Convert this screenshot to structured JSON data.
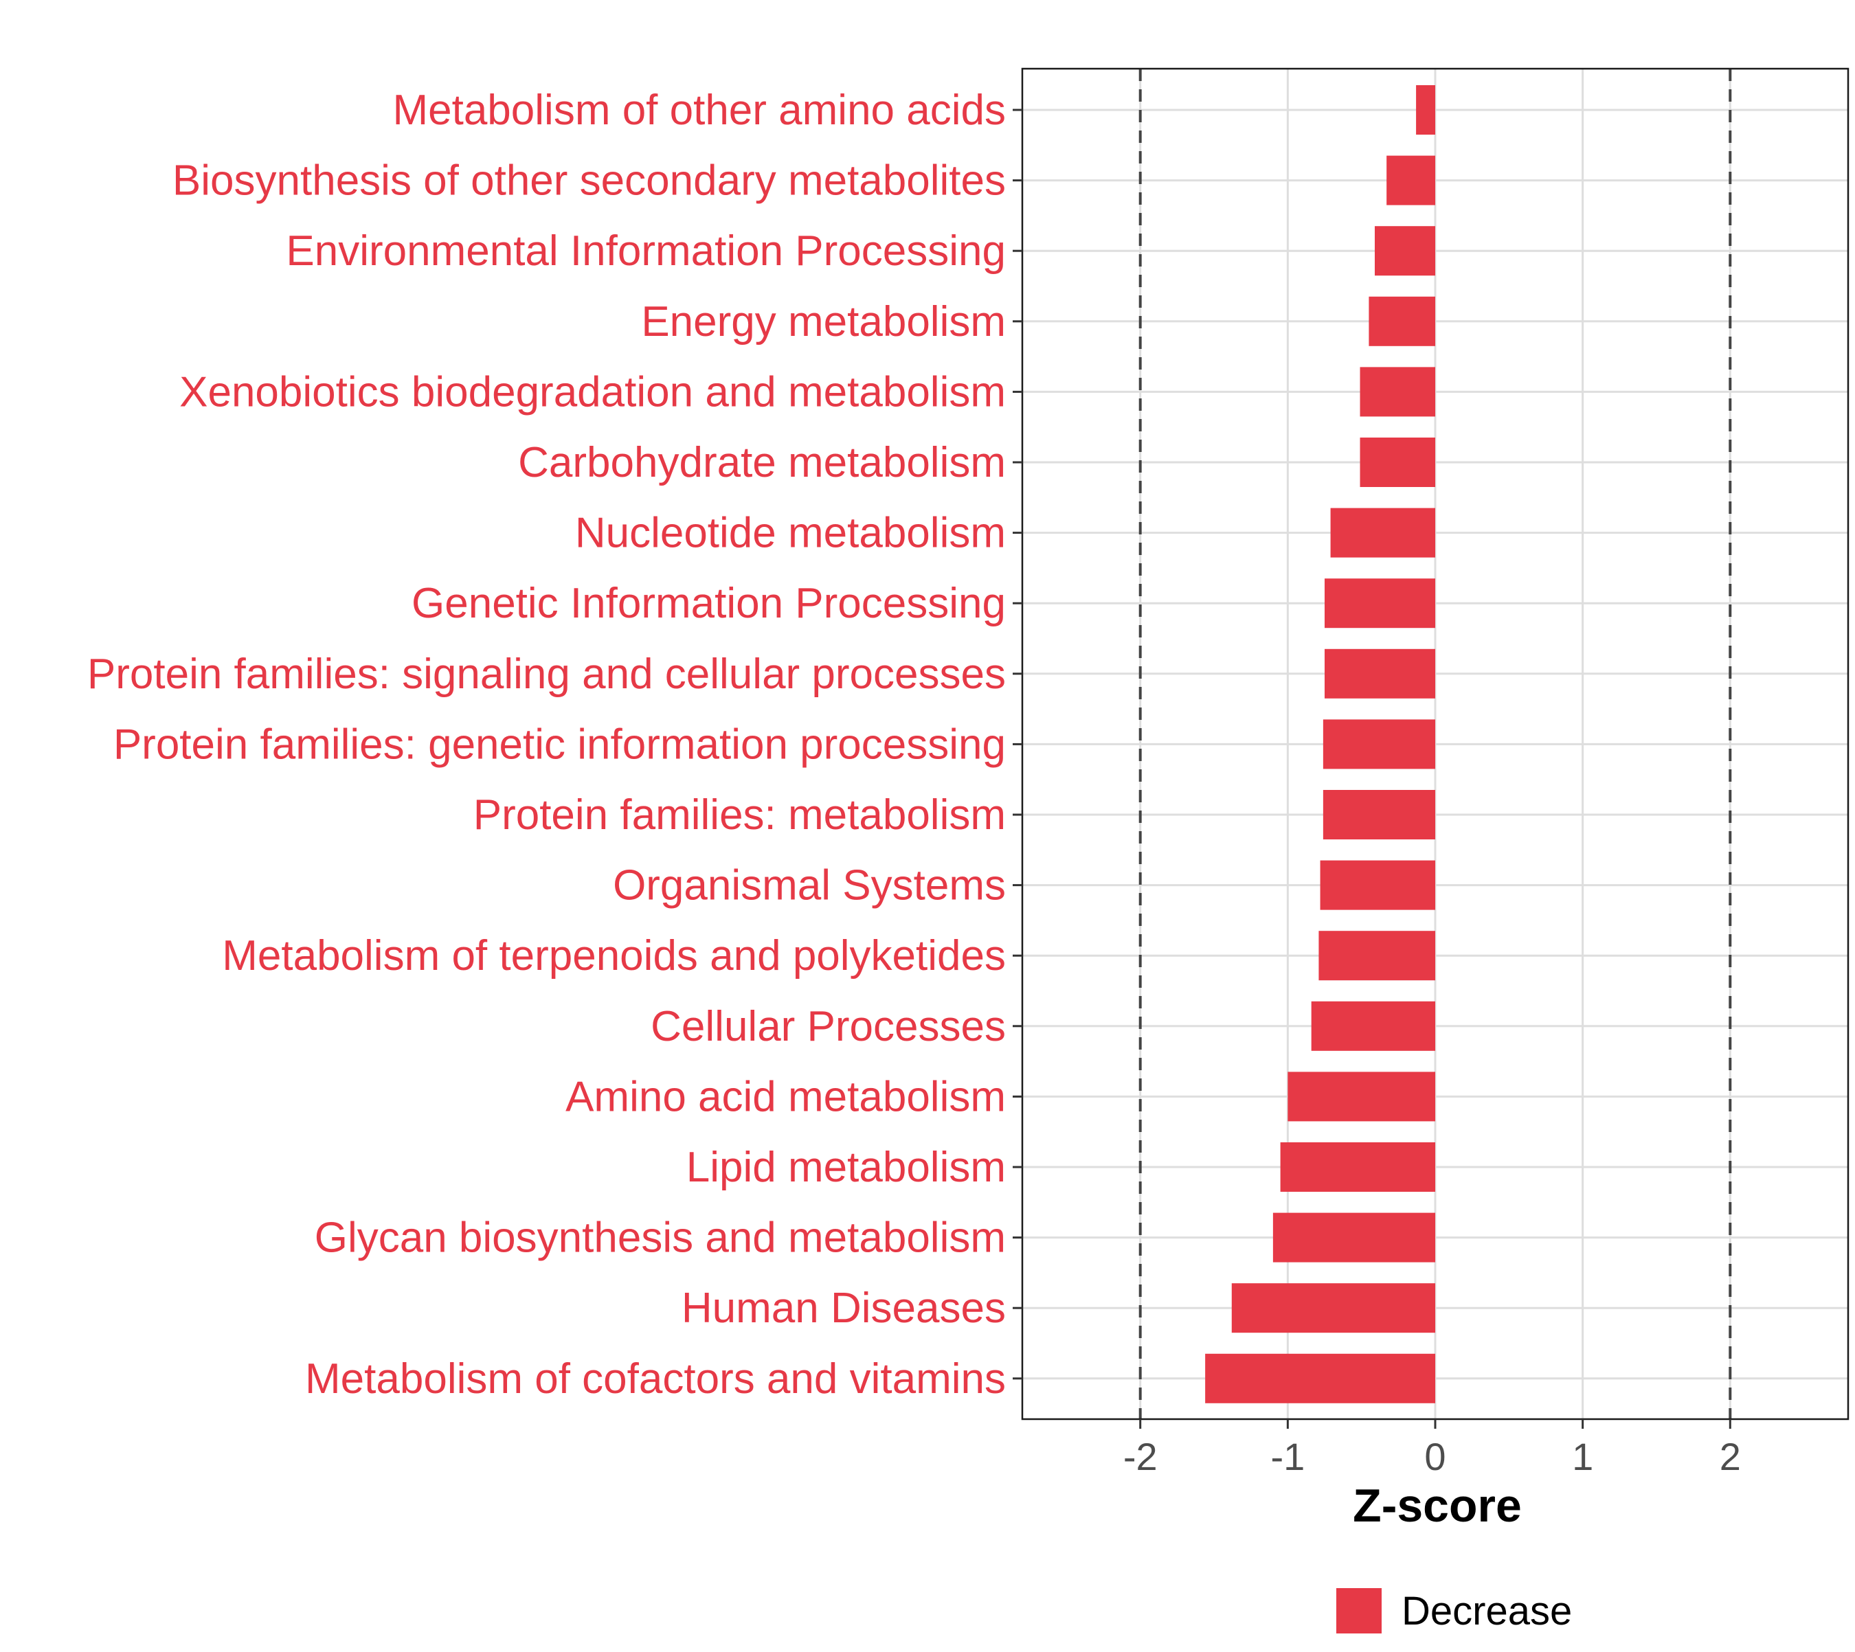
{
  "chart_data": {
    "type": "bar",
    "orientation": "horizontal",
    "categories": [
      "Metabolism of other amino acids",
      "Biosynthesis of other secondary metabolites",
      "Environmental Information Processing",
      "Energy metabolism",
      "Xenobiotics biodegradation and metabolism",
      "Carbohydrate metabolism",
      "Nucleotide metabolism",
      "Genetic Information Processing",
      "Protein families: signaling and cellular processes",
      "Protein families: genetic information processing",
      "Protein families: metabolism",
      "Organismal Systems",
      "Metabolism of terpenoids and polyketides",
      "Cellular Processes",
      "Amino acid metabolism",
      "Lipid metabolism",
      "Glycan biosynthesis and metabolism",
      "Human Diseases",
      "Metabolism of cofactors and vitamins"
    ],
    "values": [
      -0.13,
      -0.33,
      -0.41,
      -0.45,
      -0.51,
      -0.51,
      -0.71,
      -0.75,
      -0.75,
      -0.76,
      -0.76,
      -0.78,
      -0.79,
      -0.84,
      -1.0,
      -1.05,
      -1.1,
      -1.38,
      -1.56
    ],
    "xlabel": "Z-score",
    "ylabel": "",
    "xlim": [
      -2.8,
      2.8
    ],
    "xticks": [
      -2,
      -1,
      0,
      1,
      2
    ],
    "xtick_labels": [
      "-2",
      "-1",
      "0",
      "1",
      "2"
    ],
    "reference_lines": [
      -2,
      2
    ],
    "grid": true,
    "legend": {
      "placement": "bottom",
      "entries": [
        {
          "label": "Decrease",
          "color": "#e63946"
        }
      ]
    },
    "bar_color": "#e63946",
    "label_color": "#e63946"
  }
}
